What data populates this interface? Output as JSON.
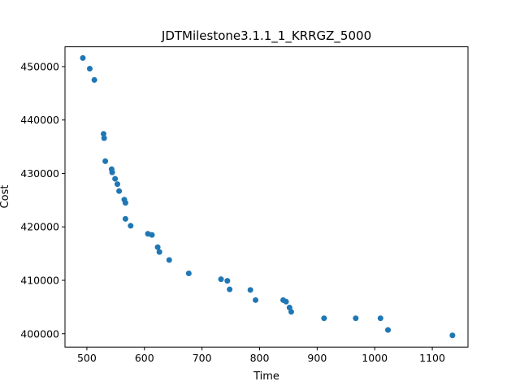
{
  "chart_data": {
    "type": "scatter",
    "title": "JDTMilestone3.1.1_1_KRRGZ_5000",
    "xlabel": "Time",
    "ylabel": "Cost",
    "xlim": [
      462,
      1162
    ],
    "ylim": [
      397500,
      453700
    ],
    "xticks": [
      500,
      600,
      700,
      800,
      900,
      1000,
      1100
    ],
    "yticks": [
      400000,
      410000,
      420000,
      430000,
      440000,
      450000
    ],
    "xtick_labels": [
      "500",
      "600",
      "700",
      "800",
      "900",
      "1000",
      "1100"
    ],
    "ytick_labels": [
      "400000",
      "410000",
      "420000",
      "430000",
      "440000",
      "450000"
    ],
    "grid": false,
    "marker_color": "#1f77b4",
    "points": [
      {
        "x": 493,
        "y": 451600
      },
      {
        "x": 505,
        "y": 449600
      },
      {
        "x": 513,
        "y": 447500
      },
      {
        "x": 529,
        "y": 437400
      },
      {
        "x": 530,
        "y": 436600
      },
      {
        "x": 532,
        "y": 432300
      },
      {
        "x": 543,
        "y": 430800
      },
      {
        "x": 544,
        "y": 430200
      },
      {
        "x": 549,
        "y": 429000
      },
      {
        "x": 553,
        "y": 428000
      },
      {
        "x": 556,
        "y": 426700
      },
      {
        "x": 565,
        "y": 425100
      },
      {
        "x": 567,
        "y": 424500
      },
      {
        "x": 567,
        "y": 421500
      },
      {
        "x": 576,
        "y": 420200
      },
      {
        "x": 606,
        "y": 418700
      },
      {
        "x": 613,
        "y": 418500
      },
      {
        "x": 623,
        "y": 416200
      },
      {
        "x": 626,
        "y": 415300
      },
      {
        "x": 643,
        "y": 413800
      },
      {
        "x": 677,
        "y": 411300
      },
      {
        "x": 733,
        "y": 410200
      },
      {
        "x": 744,
        "y": 409900
      },
      {
        "x": 748,
        "y": 408300
      },
      {
        "x": 784,
        "y": 408200
      },
      {
        "x": 793,
        "y": 406300
      },
      {
        "x": 841,
        "y": 406300
      },
      {
        "x": 846,
        "y": 406000
      },
      {
        "x": 852,
        "y": 404900
      },
      {
        "x": 855,
        "y": 404100
      },
      {
        "x": 912,
        "y": 402900
      },
      {
        "x": 967,
        "y": 402900
      },
      {
        "x": 1010,
        "y": 402900
      },
      {
        "x": 1023,
        "y": 400700
      },
      {
        "x": 1135,
        "y": 399700
      }
    ]
  }
}
